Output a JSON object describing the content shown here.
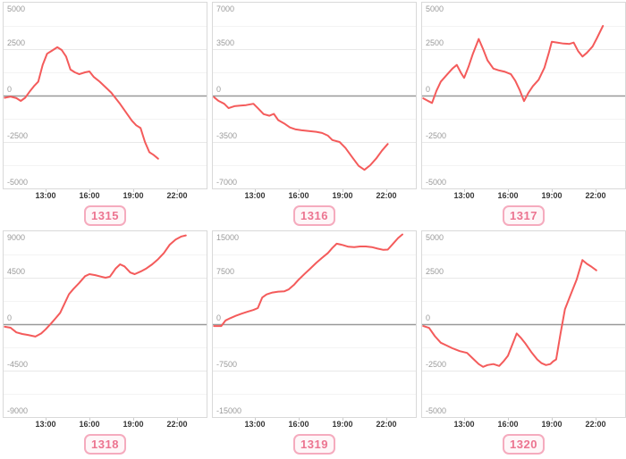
{
  "page": {
    "background": "#ffffff",
    "layout": "2x3 grid of small line charts, each with a numbered badge below"
  },
  "style": {
    "line_color": "#f45b5b",
    "zero_line_color": "#999999",
    "grid_major_color": "#e8e8e8",
    "grid_minor_color": "#f3f3f3",
    "panel_border_color": "#d9d9d9",
    "y_label_color": "#9a9a9a",
    "x_label_color": "#363636",
    "badge_border_color": "#f5abbe",
    "badge_bg_color": "#fef6f8",
    "badge_text_color": "#ec7490"
  },
  "chart_data": [
    {
      "type": "line",
      "badge": "1315",
      "series_color": "#f45b5b",
      "ylim": [
        -5000,
        5000
      ],
      "ytick_labels": [
        "5000",
        "2500",
        "0",
        "-2500",
        "-5000"
      ],
      "xtick_labels": [
        "13:00",
        "16:00",
        "19:00",
        "22:00"
      ],
      "xtick_hours": [
        13,
        16,
        19,
        22
      ],
      "x_range_hours": [
        10.1,
        24.0
      ],
      "grid": true,
      "legend": "none",
      "series": [
        {
          "name": "value",
          "points": [
            [
              10.2,
              -120
            ],
            [
              10.6,
              -60
            ],
            [
              11.0,
              -140
            ],
            [
              11.3,
              -290
            ],
            [
              11.6,
              -120
            ],
            [
              11.9,
              200
            ],
            [
              12.2,
              500
            ],
            [
              12.5,
              750
            ],
            [
              12.8,
              1650
            ],
            [
              13.1,
              2250
            ],
            [
              13.4,
              2400
            ],
            [
              13.8,
              2600
            ],
            [
              14.1,
              2450
            ],
            [
              14.4,
              2100
            ],
            [
              14.7,
              1400
            ],
            [
              15.0,
              1250
            ],
            [
              15.3,
              1150
            ],
            [
              15.7,
              1250
            ],
            [
              16.0,
              1300
            ],
            [
              16.3,
              1000
            ],
            [
              16.7,
              750
            ],
            [
              17.1,
              450
            ],
            [
              17.5,
              150
            ],
            [
              17.8,
              -150
            ],
            [
              18.1,
              -450
            ],
            [
              18.5,
              -900
            ],
            [
              18.9,
              -1350
            ],
            [
              19.2,
              -1600
            ],
            [
              19.5,
              -1750
            ],
            [
              19.8,
              -2500
            ],
            [
              20.1,
              -3050
            ],
            [
              20.4,
              -3200
            ],
            [
              20.7,
              -3400
            ]
          ]
        }
      ]
    },
    {
      "type": "line",
      "badge": "1316",
      "series_color": "#f45b5b",
      "ylim": [
        -7000,
        7000
      ],
      "ytick_labels": [
        "7000",
        "3500",
        "0",
        "-3500",
        "-7000"
      ],
      "xtick_labels": [
        "13:00",
        "16:00",
        "19:00",
        "22:00"
      ],
      "xtick_hours": [
        13,
        16,
        19,
        22
      ],
      "x_range_hours": [
        10.1,
        24.0
      ],
      "grid": true,
      "legend": "none",
      "series": [
        {
          "name": "value",
          "points": [
            [
              10.2,
              -120
            ],
            [
              10.5,
              -400
            ],
            [
              10.9,
              -620
            ],
            [
              11.2,
              -950
            ],
            [
              11.6,
              -800
            ],
            [
              12.0,
              -760
            ],
            [
              12.4,
              -720
            ],
            [
              12.9,
              -620
            ],
            [
              13.2,
              -950
            ],
            [
              13.6,
              -1400
            ],
            [
              14.0,
              -1520
            ],
            [
              14.3,
              -1380
            ],
            [
              14.6,
              -1850
            ],
            [
              15.0,
              -2100
            ],
            [
              15.4,
              -2400
            ],
            [
              15.8,
              -2550
            ],
            [
              16.2,
              -2620
            ],
            [
              16.7,
              -2680
            ],
            [
              17.2,
              -2730
            ],
            [
              17.6,
              -2820
            ],
            [
              18.0,
              -3020
            ],
            [
              18.3,
              -3350
            ],
            [
              18.8,
              -3500
            ],
            [
              19.2,
              -3950
            ],
            [
              19.7,
              -4700
            ],
            [
              20.1,
              -5300
            ],
            [
              20.5,
              -5600
            ],
            [
              20.9,
              -5250
            ],
            [
              21.3,
              -4750
            ],
            [
              21.7,
              -4150
            ],
            [
              22.1,
              -3650
            ]
          ]
        }
      ]
    },
    {
      "type": "line",
      "badge": "1317",
      "series_color": "#f45b5b",
      "ylim": [
        -5000,
        5000
      ],
      "ytick_labels": [
        "5000",
        "2500",
        "0",
        "-2500",
        "-5000"
      ],
      "xtick_labels": [
        "13:00",
        "16:00",
        "19:00",
        "22:00"
      ],
      "xtick_hours": [
        13,
        16,
        19,
        22
      ],
      "x_range_hours": [
        10.1,
        24.0
      ],
      "grid": true,
      "legend": "none",
      "series": [
        {
          "name": "value",
          "points": [
            [
              10.2,
              -150
            ],
            [
              10.5,
              -280
            ],
            [
              10.8,
              -400
            ],
            [
              11.1,
              250
            ],
            [
              11.4,
              750
            ],
            [
              11.8,
              1100
            ],
            [
              12.2,
              1450
            ],
            [
              12.5,
              1650
            ],
            [
              12.8,
              1200
            ],
            [
              13.0,
              950
            ],
            [
              13.3,
              1550
            ],
            [
              13.6,
              2250
            ],
            [
              14.0,
              3050
            ],
            [
              14.3,
              2500
            ],
            [
              14.6,
              1900
            ],
            [
              15.0,
              1450
            ],
            [
              15.4,
              1350
            ],
            [
              15.8,
              1280
            ],
            [
              16.2,
              1150
            ],
            [
              16.5,
              800
            ],
            [
              16.8,
              300
            ],
            [
              17.1,
              -300
            ],
            [
              17.4,
              150
            ],
            [
              17.7,
              500
            ],
            [
              18.1,
              850
            ],
            [
              18.5,
              1500
            ],
            [
              18.8,
              2300
            ],
            [
              19.0,
              2900
            ],
            [
              19.4,
              2850
            ],
            [
              19.8,
              2800
            ],
            [
              20.2,
              2780
            ],
            [
              20.5,
              2850
            ],
            [
              20.8,
              2400
            ],
            [
              21.1,
              2100
            ],
            [
              21.4,
              2300
            ],
            [
              21.8,
              2650
            ],
            [
              22.1,
              3100
            ],
            [
              22.5,
              3750
            ]
          ]
        }
      ]
    },
    {
      "type": "line",
      "badge": "1318",
      "series_color": "#f45b5b",
      "ylim": [
        -9000,
        9000
      ],
      "ytick_labels": [
        "9000",
        "4500",
        "0",
        "-4500",
        "-9000"
      ],
      "xtick_labels": [
        "13:00",
        "16:00",
        "19:00",
        "22:00"
      ],
      "xtick_hours": [
        13,
        16,
        19,
        22
      ],
      "x_range_hours": [
        10.1,
        24.0
      ],
      "grid": true,
      "legend": "none",
      "series": [
        {
          "name": "value",
          "points": [
            [
              10.2,
              -250
            ],
            [
              10.6,
              -350
            ],
            [
              11.0,
              -800
            ],
            [
              11.4,
              -950
            ],
            [
              11.8,
              -1050
            ],
            [
              12.3,
              -1200
            ],
            [
              12.7,
              -900
            ],
            [
              13.0,
              -500
            ],
            [
              13.4,
              100
            ],
            [
              13.7,
              600
            ],
            [
              14.0,
              1100
            ],
            [
              14.3,
              2000
            ],
            [
              14.6,
              2900
            ],
            [
              14.9,
              3400
            ],
            [
              15.3,
              4000
            ],
            [
              15.7,
              4650
            ],
            [
              16.0,
              4850
            ],
            [
              16.4,
              4750
            ],
            [
              16.8,
              4600
            ],
            [
              17.1,
              4500
            ],
            [
              17.4,
              4600
            ],
            [
              17.8,
              5400
            ],
            [
              18.1,
              5800
            ],
            [
              18.4,
              5600
            ],
            [
              18.8,
              5000
            ],
            [
              19.1,
              4850
            ],
            [
              19.5,
              5100
            ],
            [
              19.9,
              5400
            ],
            [
              20.3,
              5800
            ],
            [
              20.7,
              6300
            ],
            [
              21.1,
              6900
            ],
            [
              21.5,
              7700
            ],
            [
              21.9,
              8200
            ],
            [
              22.3,
              8500
            ],
            [
              22.6,
              8600
            ]
          ]
        }
      ]
    },
    {
      "type": "line",
      "badge": "1319",
      "series_color": "#f45b5b",
      "ylim": [
        -15000,
        15000
      ],
      "ytick_labels": [
        "15000",
        "7500",
        "0",
        "-7500",
        "-15000"
      ],
      "xtick_labels": [
        "13:00",
        "16:00",
        "19:00",
        "22:00"
      ],
      "xtick_hours": [
        13,
        16,
        19,
        22
      ],
      "x_range_hours": [
        10.1,
        24.0
      ],
      "grid": true,
      "legend": "none",
      "series": [
        {
          "name": "value",
          "points": [
            [
              10.2,
              -300
            ],
            [
              10.7,
              -300
            ],
            [
              11.0,
              600
            ],
            [
              11.3,
              950
            ],
            [
              11.7,
              1350
            ],
            [
              12.1,
              1700
            ],
            [
              12.5,
              2000
            ],
            [
              12.9,
              2300
            ],
            [
              13.2,
              2600
            ],
            [
              13.5,
              4300
            ],
            [
              13.8,
              4800
            ],
            [
              14.2,
              5100
            ],
            [
              14.6,
              5250
            ],
            [
              15.0,
              5300
            ],
            [
              15.3,
              5600
            ],
            [
              15.7,
              6400
            ],
            [
              16.0,
              7200
            ],
            [
              16.4,
              8100
            ],
            [
              16.8,
              9000
            ],
            [
              17.2,
              9900
            ],
            [
              17.6,
              10700
            ],
            [
              18.0,
              11500
            ],
            [
              18.3,
              12300
            ],
            [
              18.6,
              13000
            ],
            [
              19.0,
              12800
            ],
            [
              19.4,
              12500
            ],
            [
              19.8,
              12450
            ],
            [
              20.2,
              12550
            ],
            [
              20.6,
              12550
            ],
            [
              21.0,
              12450
            ],
            [
              21.4,
              12200
            ],
            [
              21.8,
              12000
            ],
            [
              22.1,
              12050
            ],
            [
              22.5,
              13100
            ],
            [
              22.8,
              13900
            ],
            [
              23.1,
              14500
            ]
          ]
        }
      ]
    },
    {
      "type": "line",
      "badge": "1320",
      "series_color": "#f45b5b",
      "ylim": [
        -5000,
        5000
      ],
      "ytick_labels": [
        "5000",
        "2500",
        "0",
        "-2500",
        "-5000"
      ],
      "xtick_labels": [
        "13:00",
        "16:00",
        "19:00",
        "22:00"
      ],
      "xtick_hours": [
        13,
        16,
        19,
        22
      ],
      "x_range_hours": [
        10.1,
        24.0
      ],
      "grid": true,
      "legend": "none",
      "series": [
        {
          "name": "value",
          "points": [
            [
              10.2,
              -100
            ],
            [
              10.6,
              -200
            ],
            [
              11.0,
              -650
            ],
            [
              11.4,
              -1000
            ],
            [
              11.8,
              -1150
            ],
            [
              12.2,
              -1300
            ],
            [
              12.7,
              -1450
            ],
            [
              13.2,
              -1550
            ],
            [
              13.6,
              -1850
            ],
            [
              14.0,
              -2150
            ],
            [
              14.3,
              -2300
            ],
            [
              14.6,
              -2200
            ],
            [
              15.0,
              -2150
            ],
            [
              15.4,
              -2250
            ],
            [
              15.7,
              -2000
            ],
            [
              16.0,
              -1700
            ],
            [
              16.3,
              -1100
            ],
            [
              16.6,
              -500
            ],
            [
              16.9,
              -750
            ],
            [
              17.2,
              -1050
            ],
            [
              17.6,
              -1500
            ],
            [
              18.0,
              -1900
            ],
            [
              18.3,
              -2100
            ],
            [
              18.6,
              -2200
            ],
            [
              18.9,
              -2150
            ],
            [
              19.1,
              -2000
            ],
            [
              19.3,
              -1900
            ],
            [
              19.6,
              -500
            ],
            [
              19.9,
              800
            ],
            [
              20.3,
              1600
            ],
            [
              20.7,
              2400
            ],
            [
              21.1,
              3450
            ],
            [
              21.4,
              3250
            ],
            [
              21.7,
              3100
            ],
            [
              22.05,
              2900
            ]
          ]
        }
      ]
    }
  ]
}
